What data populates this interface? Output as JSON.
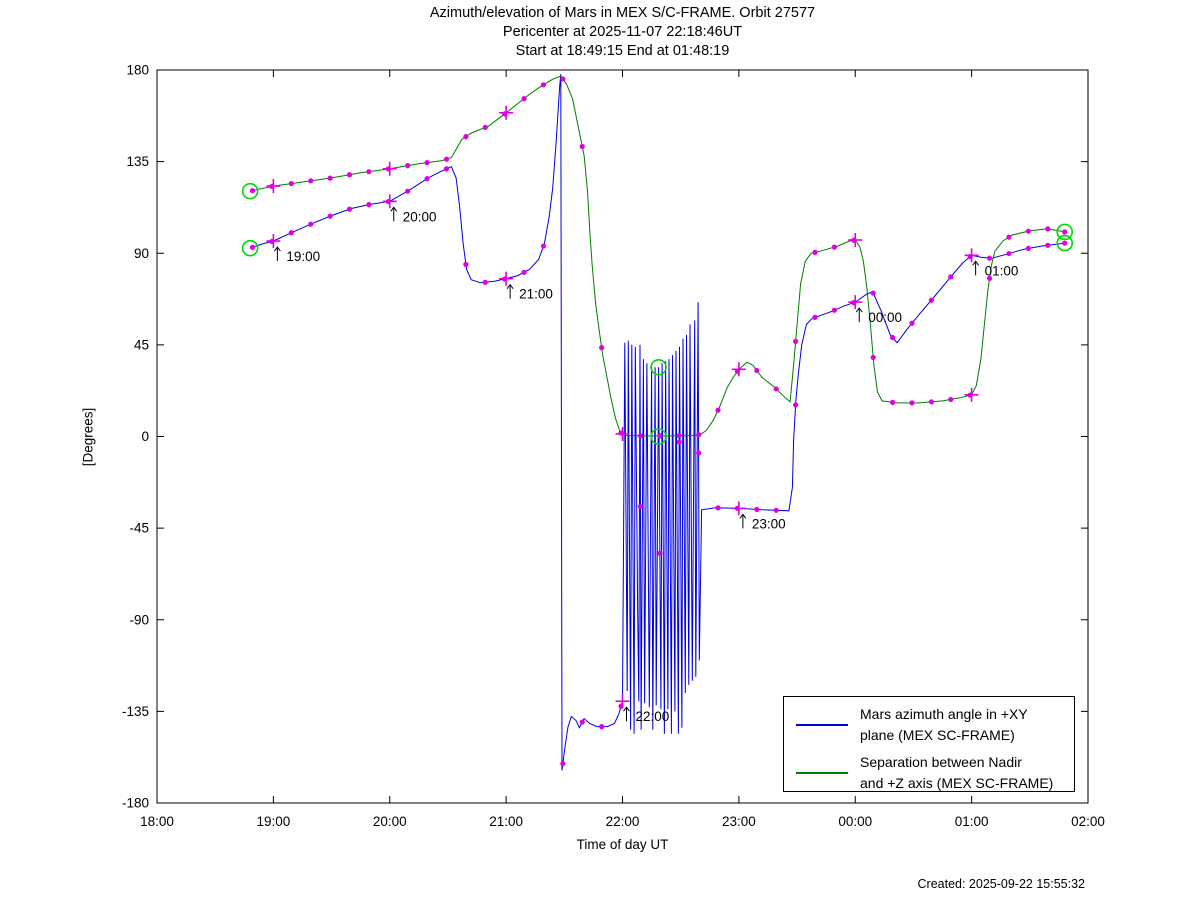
{
  "figure": {
    "title_lines": [
      "Azimuth/elevation of Mars in MEX S/C-FRAME.  Orbit 27577",
      "Pericenter at 2025-11-07 22:18:46UT",
      "Start at 18:49:15 End at 01:48:19"
    ],
    "created_text": "Created: 2025-09-22 15:55:32"
  },
  "chart_data": {
    "type": "line",
    "title": "Azimuth/elevation of Mars in MEX S/C-FRAME.  Orbit 27577",
    "subtitle1": "Pericenter at 2025-11-07 22:18:46UT",
    "subtitle2": "Start at 18:49:15 End at 01:48:19",
    "xlabel": "Time of day UT",
    "ylabel": "[Degrees]",
    "x_range_hours": [
      18,
      26
    ],
    "ylim": [
      -180,
      180
    ],
    "grid": false,
    "legend_position": "bottom-right",
    "x_ticks": [
      {
        "hour": 18,
        "label": "18:00"
      },
      {
        "hour": 19,
        "label": "19:00"
      },
      {
        "hour": 20,
        "label": "20:00"
      },
      {
        "hour": 21,
        "label": "21:00"
      },
      {
        "hour": 22,
        "label": "22:00"
      },
      {
        "hour": 23,
        "label": "23:00"
      },
      {
        "hour": 24,
        "label": "00:00"
      },
      {
        "hour": 25,
        "label": "01:00"
      },
      {
        "hour": 26,
        "label": "02:00"
      }
    ],
    "y_ticks": [
      180,
      135,
      90,
      45,
      0,
      -45,
      -90,
      -135,
      -180
    ],
    "start_hour": 18.8208,
    "end_hour": 25.8053,
    "pericenter_hour": 22.313,
    "dot_interval_hours": 0.16667,
    "colors": {
      "azimuth_line": "#0000e0",
      "separation_line": "#007c00",
      "marker_magenta": "#e000e0",
      "endpoint_circle": "#00d800",
      "axis": "#000000"
    },
    "series": [
      {
        "name": "mars-azimuth",
        "legend_lines": [
          "Mars azimuth angle in +XY",
          "plane (MEX SC-FRAME)"
        ],
        "color": "#0000e0",
        "points": [
          [
            18.8,
            92.5
          ],
          [
            18.9,
            94.5
          ],
          [
            19.0,
            96
          ],
          [
            19.17,
            100.5
          ],
          [
            19.33,
            104.5
          ],
          [
            19.5,
            108.5
          ],
          [
            19.67,
            112
          ],
          [
            19.83,
            114
          ],
          [
            20.0,
            115.5
          ],
          [
            20.17,
            121
          ],
          [
            20.33,
            127
          ],
          [
            20.45,
            130.5
          ],
          [
            20.53,
            132.5
          ],
          [
            20.57,
            127
          ],
          [
            20.6,
            113
          ],
          [
            20.63,
            95
          ],
          [
            20.66,
            82
          ],
          [
            20.7,
            77
          ],
          [
            20.78,
            75.5
          ],
          [
            20.9,
            76.2
          ],
          [
            21.0,
            77.5
          ],
          [
            21.1,
            79
          ],
          [
            21.2,
            82
          ],
          [
            21.28,
            87
          ],
          [
            21.33,
            95
          ],
          [
            21.37,
            108
          ],
          [
            21.4,
            122
          ],
          [
            21.43,
            145
          ],
          [
            21.45,
            163
          ],
          [
            21.46,
            172
          ],
          [
            21.47,
            178
          ],
          [
            21.48,
            -164
          ],
          [
            21.5,
            -155
          ],
          [
            21.53,
            -143
          ],
          [
            21.56,
            -137.5
          ],
          [
            21.6,
            -139.5
          ],
          [
            21.63,
            -143
          ],
          [
            21.67,
            -138.5
          ],
          [
            21.72,
            -141
          ],
          [
            21.78,
            -142.5
          ],
          [
            21.87,
            -142.5
          ],
          [
            21.93,
            -141
          ],
          [
            21.97,
            -136
          ],
          [
            22.0,
            -130
          ],
          [
            22.02,
            46
          ],
          [
            22.04,
            -125
          ],
          [
            22.05,
            47
          ],
          [
            22.07,
            -144
          ],
          [
            22.08,
            45
          ],
          [
            22.1,
            -146
          ],
          [
            22.11,
            44
          ],
          [
            22.13,
            -83
          ],
          [
            22.14,
            -130
          ],
          [
            22.15,
            45
          ],
          [
            22.16,
            -144
          ],
          [
            22.18,
            38
          ],
          [
            22.19,
            -131
          ],
          [
            22.21,
            36
          ],
          [
            22.23,
            -133
          ],
          [
            22.25,
            35
          ],
          [
            22.26,
            -144
          ],
          [
            22.28,
            34
          ],
          [
            22.29,
            -132
          ],
          [
            22.31,
            34
          ],
          [
            22.33,
            -134
          ],
          [
            22.34,
            36
          ],
          [
            22.36,
            -146
          ],
          [
            22.37,
            37
          ],
          [
            22.39,
            -134
          ],
          [
            22.4,
            38
          ],
          [
            22.42,
            -146
          ],
          [
            22.43,
            40
          ],
          [
            22.45,
            -135
          ],
          [
            22.46,
            42
          ],
          [
            22.48,
            -146
          ],
          [
            22.49,
            44
          ],
          [
            22.51,
            -143
          ],
          [
            22.52,
            48
          ],
          [
            22.54,
            -126
          ],
          [
            22.55,
            50
          ],
          [
            22.57,
            -122
          ],
          [
            22.58,
            55
          ],
          [
            22.6,
            -120
          ],
          [
            22.62,
            57
          ],
          [
            22.63,
            -118
          ],
          [
            22.65,
            66
          ],
          [
            22.66,
            -110
          ],
          [
            22.68,
            -36
          ],
          [
            22.8,
            -35
          ],
          [
            23.0,
            -35.3
          ],
          [
            23.2,
            -36
          ],
          [
            23.43,
            -36.5
          ],
          [
            23.46,
            -25
          ],
          [
            23.47,
            -2
          ],
          [
            23.49,
            18
          ],
          [
            23.51,
            30
          ],
          [
            23.54,
            45
          ],
          [
            23.58,
            55
          ],
          [
            23.63,
            58
          ],
          [
            23.8,
            61.5
          ],
          [
            23.9,
            64
          ],
          [
            24.0,
            66
          ],
          [
            24.1,
            70
          ],
          [
            24.15,
            71
          ],
          [
            24.22,
            62
          ],
          [
            24.3,
            50
          ],
          [
            24.36,
            46
          ],
          [
            24.45,
            53
          ],
          [
            24.55,
            60
          ],
          [
            24.67,
            68
          ],
          [
            24.8,
            77
          ],
          [
            24.92,
            85
          ],
          [
            25.0,
            89
          ],
          [
            25.08,
            88
          ],
          [
            25.17,
            87.5
          ],
          [
            25.3,
            89.5
          ],
          [
            25.45,
            92
          ],
          [
            25.6,
            93.5
          ],
          [
            25.8,
            95
          ]
        ]
      },
      {
        "name": "nadir-z-separation",
        "legend_lines": [
          "Separation between Nadir",
          "and +Z axis (MEX SC-FRAME)"
        ],
        "color": "#007c00",
        "points": [
          [
            18.8,
            120.5
          ],
          [
            19.0,
            123
          ],
          [
            19.25,
            125
          ],
          [
            19.5,
            127
          ],
          [
            19.75,
            129.5
          ],
          [
            20.0,
            131.5
          ],
          [
            20.25,
            134
          ],
          [
            20.45,
            135.5
          ],
          [
            20.53,
            137
          ],
          [
            20.57,
            141
          ],
          [
            20.62,
            146
          ],
          [
            20.7,
            149
          ],
          [
            20.85,
            152.5
          ],
          [
            21.0,
            159
          ],
          [
            21.1,
            163.5
          ],
          [
            21.2,
            168
          ],
          [
            21.3,
            172
          ],
          [
            21.4,
            175.5
          ],
          [
            21.47,
            177
          ],
          [
            21.52,
            173
          ],
          [
            21.57,
            166
          ],
          [
            21.62,
            152
          ],
          [
            21.67,
            138
          ],
          [
            21.7,
            120
          ],
          [
            21.72,
            100
          ],
          [
            21.74,
            84
          ],
          [
            21.77,
            65
          ],
          [
            21.8,
            52
          ],
          [
            21.83,
            40
          ],
          [
            21.87,
            28
          ],
          [
            21.9,
            19
          ],
          [
            21.94,
            9
          ],
          [
            21.98,
            2
          ],
          [
            22.02,
            0.5
          ],
          [
            22.2,
            0.3
          ],
          [
            22.4,
            0.3
          ],
          [
            22.6,
            0.5
          ],
          [
            22.67,
            1
          ],
          [
            22.72,
            3
          ],
          [
            22.78,
            8
          ],
          [
            22.83,
            14
          ],
          [
            22.9,
            24
          ],
          [
            22.95,
            29
          ],
          [
            23.0,
            33
          ],
          [
            23.07,
            36.5
          ],
          [
            23.12,
            35
          ],
          [
            23.2,
            29
          ],
          [
            23.3,
            24.5
          ],
          [
            23.4,
            19
          ],
          [
            23.44,
            17
          ],
          [
            23.47,
            35
          ],
          [
            23.5,
            55
          ],
          [
            23.53,
            75
          ],
          [
            23.57,
            86
          ],
          [
            23.62,
            90
          ],
          [
            23.7,
            91
          ],
          [
            23.85,
            93.5
          ],
          [
            23.95,
            96
          ],
          [
            24.0,
            96.5
          ],
          [
            24.04,
            93
          ],
          [
            24.07,
            86
          ],
          [
            24.1,
            73
          ],
          [
            24.13,
            55
          ],
          [
            24.16,
            35
          ],
          [
            24.19,
            22
          ],
          [
            24.23,
            17.5
          ],
          [
            24.35,
            16.5
          ],
          [
            24.55,
            16.5
          ],
          [
            24.75,
            17.5
          ],
          [
            24.9,
            19
          ],
          [
            25.0,
            20.5
          ],
          [
            25.04,
            25
          ],
          [
            25.08,
            38
          ],
          [
            25.11,
            55
          ],
          [
            25.14,
            72
          ],
          [
            25.17,
            84
          ],
          [
            25.2,
            91
          ],
          [
            25.27,
            96
          ],
          [
            25.35,
            99
          ],
          [
            25.5,
            101
          ],
          [
            25.65,
            102
          ],
          [
            25.8,
            100.5
          ]
        ]
      }
    ],
    "hour_plus_markers": [
      19,
      20,
      21,
      22,
      23,
      24,
      25
    ],
    "circle_markers": [
      {
        "series": 0,
        "t": 18.8
      },
      {
        "series": 1,
        "t": 18.8
      },
      {
        "series": 0,
        "t": 25.8
      },
      {
        "series": 1,
        "t": 25.8
      },
      {
        "series": 0,
        "t": 22.31,
        "v": 34
      },
      {
        "series": 1,
        "t": 22.31,
        "v": 0
      }
    ],
    "annotations": [
      {
        "hour": 19,
        "label": "19:00"
      },
      {
        "hour": 20,
        "label": "20:00"
      },
      {
        "hour": 21,
        "label": "21:00"
      },
      {
        "hour": 22,
        "label": "22:00"
      },
      {
        "hour": 23,
        "label": "23:00"
      },
      {
        "hour": 24,
        "label": "00:00"
      },
      {
        "hour": 25,
        "label": "01:00"
      }
    ]
  }
}
